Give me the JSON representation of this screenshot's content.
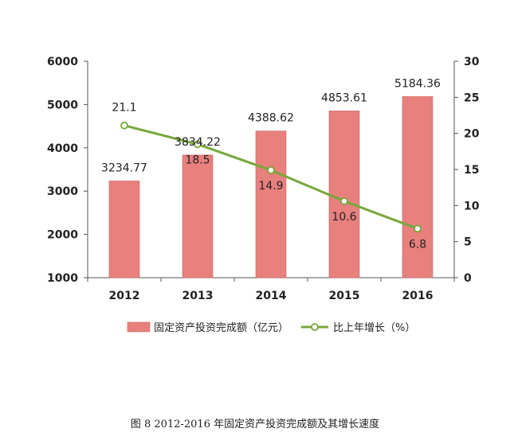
{
  "caption": "图 8    2012-2016 年固定资产投资完成额及其增长速度",
  "chart_data": {
    "type": "bar",
    "categories": [
      "2012",
      "2013",
      "2014",
      "2015",
      "2016"
    ],
    "series": [
      {
        "name": "固定资产投资完成额（亿元）",
        "kind": "bar",
        "axis": "left",
        "color": "#e8807d",
        "values": [
          3234.77,
          3834.22,
          4388.62,
          4853.61,
          5184.36
        ],
        "labels": [
          "3234.77",
          "3834.22",
          "4388.62",
          "4853.61",
          "5184.36"
        ]
      },
      {
        "name": "比上年增长（%）",
        "kind": "line",
        "axis": "right",
        "color": "#77a83a",
        "values": [
          21.1,
          18.5,
          14.9,
          10.6,
          6.8
        ],
        "labels": [
          "21.1",
          "18.5",
          "14.9",
          "10.6",
          "6.8"
        ]
      }
    ],
    "y_left": {
      "min": 1000,
      "max": 6000,
      "ticks": [
        "1000",
        "2000",
        "3000",
        "4000",
        "5000",
        "6000"
      ]
    },
    "y_right": {
      "min": 0,
      "max": 30,
      "ticks": [
        "0",
        "5",
        "10",
        "15",
        "20",
        "25",
        "30"
      ]
    },
    "legend": {
      "position": "bottom"
    },
    "grid": false
  }
}
